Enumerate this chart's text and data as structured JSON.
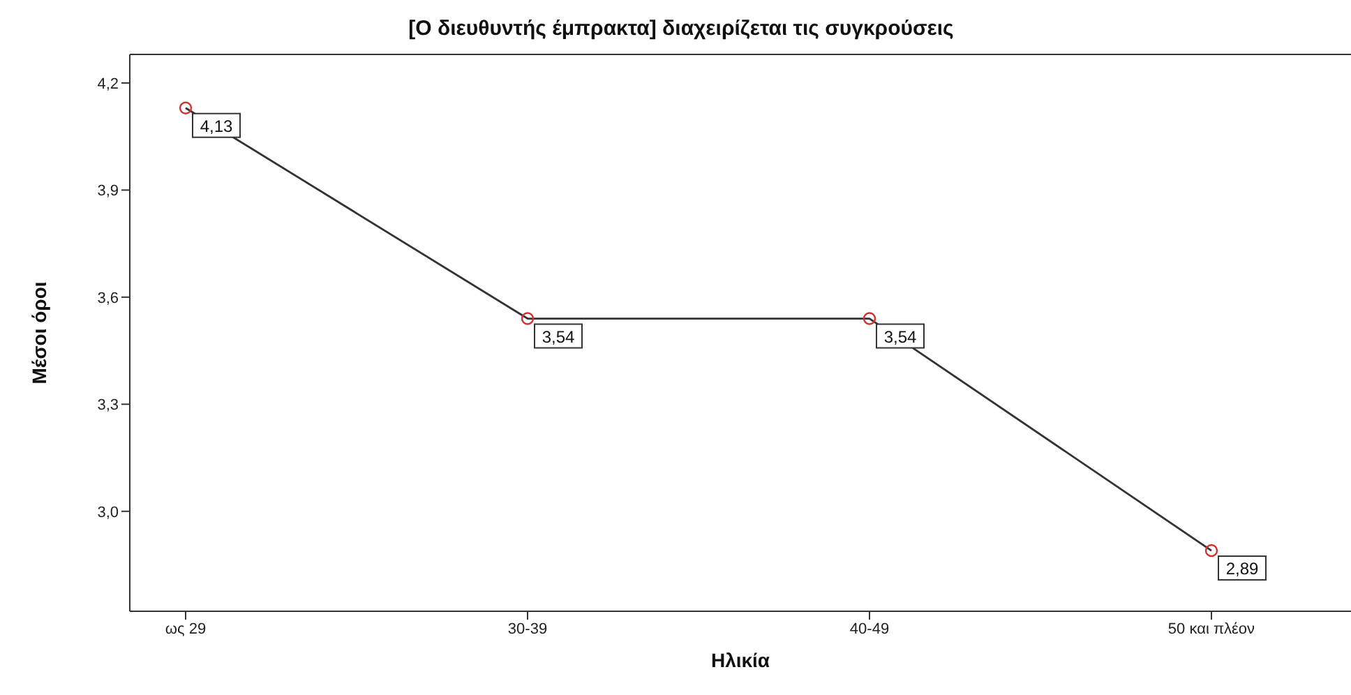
{
  "chart_data": {
    "type": "line",
    "title": "[Ο διευθυντής έμπρακτα]  διαχειρίζεται τις συγκρούσεις",
    "xlabel": "Ηλικία",
    "ylabel": "Μέσοι όροι",
    "categories": [
      "ως 29",
      "30-39",
      "40-49",
      "50 και πλέον"
    ],
    "series": [
      {
        "color": "#333333",
        "colors": [
          "#cc3333",
          "#cc3333",
          "#cc3333",
          "#cc3333"
        ],
        "values": [
          4.13,
          3.54,
          3.54,
          2.89
        ],
        "value_labels": [
          "4,13",
          "3,54",
          "3,54",
          "2,89"
        ]
      }
    ],
    "marker": "circle",
    "line_style": "solid",
    "ylim": [
      2.72,
      4.28
    ],
    "yticks": [
      {
        "value": 3.0,
        "label": "3,0"
      },
      {
        "value": 3.3,
        "label": "3,3"
      },
      {
        "value": 3.6,
        "label": "3,6"
      },
      {
        "value": 3.9,
        "label": "3,9"
      },
      {
        "value": 4.2,
        "label": "4,2"
      }
    ],
    "grid": false,
    "legend": false
  }
}
